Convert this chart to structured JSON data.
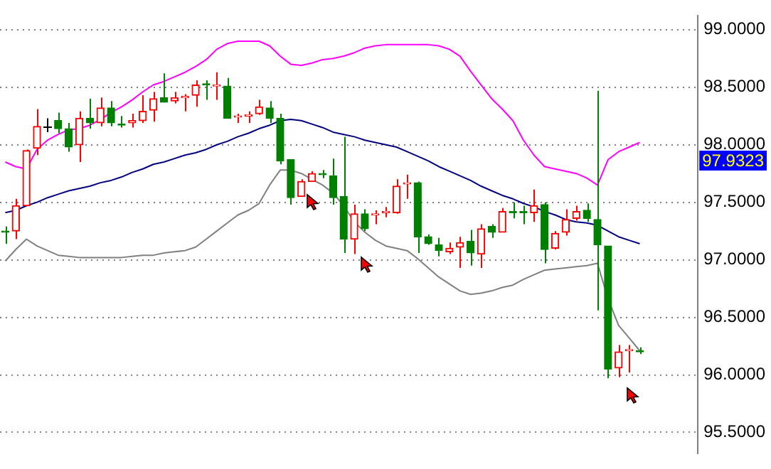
{
  "chart_data": {
    "type": "candlestick",
    "categories": [
      null,
      null,
      null,
      null,
      null,
      null,
      null,
      null,
      null,
      null,
      null,
      null,
      null,
      null,
      null,
      null,
      null,
      null,
      null,
      null,
      null,
      null,
      null,
      null,
      null,
      null,
      null,
      null,
      null,
      null,
      null,
      null,
      null,
      null,
      null,
      null,
      null,
      null,
      null,
      null,
      null,
      null,
      null,
      null,
      null,
      null,
      null,
      null,
      null,
      null,
      null,
      null,
      null,
      null,
      null,
      null,
      null,
      null,
      null,
      null,
      null,
      null,
      null,
      null,
      null,
      null
    ],
    "ohlc": [
      [
        97.25,
        97.29,
        97.14,
        97.24
      ],
      [
        97.25,
        97.53,
        97.18,
        97.47
      ],
      [
        97.47,
        97.96,
        97.47,
        97.95
      ],
      [
        97.97,
        98.31,
        97.91,
        98.16
      ],
      [
        98.16,
        98.23,
        98.11,
        98.16
      ],
      [
        98.21,
        98.28,
        98.1,
        98.14
      ],
      [
        98.14,
        98.19,
        97.94,
        97.98
      ],
      [
        98.0,
        98.29,
        97.85,
        98.23
      ],
      [
        98.23,
        98.4,
        98.14,
        98.19
      ],
      [
        98.19,
        98.41,
        98.16,
        98.32
      ],
      [
        98.32,
        98.38,
        98.16,
        98.19
      ],
      [
        98.18,
        98.25,
        98.15,
        98.17
      ],
      [
        98.19,
        98.27,
        98.15,
        98.21
      ],
      [
        98.21,
        98.43,
        98.19,
        98.29
      ],
      [
        98.3,
        98.46,
        98.2,
        98.4
      ],
      [
        98.41,
        98.62,
        98.37,
        98.37
      ],
      [
        98.38,
        98.46,
        98.36,
        98.41
      ],
      [
        98.41,
        98.44,
        98.29,
        98.42
      ],
      [
        98.43,
        98.56,
        98.33,
        98.52
      ],
      [
        98.53,
        98.56,
        98.39,
        98.52
      ],
      [
        98.51,
        98.63,
        98.39,
        98.52
      ],
      [
        98.51,
        98.58,
        98.23,
        98.23
      ],
      [
        98.24,
        98.27,
        98.19,
        98.25
      ],
      [
        98.25,
        98.29,
        98.19,
        98.26
      ],
      [
        98.27,
        98.39,
        98.26,
        98.33
      ],
      [
        98.32,
        98.38,
        98.19,
        98.23
      ],
      [
        98.23,
        98.27,
        97.83,
        97.86
      ],
      [
        97.87,
        97.87,
        97.48,
        97.54
      ],
      [
        97.55,
        97.7,
        97.55,
        97.68
      ],
      [
        97.68,
        97.77,
        97.68,
        97.75
      ],
      [
        97.75,
        97.78,
        97.71,
        97.74
      ],
      [
        97.73,
        97.88,
        97.48,
        97.54
      ],
      [
        97.55,
        98.07,
        97.06,
        97.18
      ],
      [
        97.18,
        97.48,
        97.05,
        97.4
      ],
      [
        97.4,
        97.44,
        97.25,
        97.27
      ],
      [
        97.39,
        97.43,
        97.31,
        97.4
      ],
      [
        97.41,
        97.46,
        97.37,
        97.42
      ],
      [
        97.41,
        97.7,
        97.4,
        97.64
      ],
      [
        97.66,
        97.74,
        97.53,
        97.67
      ],
      [
        97.67,
        97.68,
        97.06,
        97.2
      ],
      [
        97.2,
        97.22,
        97.13,
        97.14
      ],
      [
        97.13,
        97.19,
        97.03,
        97.08
      ],
      [
        97.07,
        97.15,
        97.05,
        97.1
      ],
      [
        97.11,
        97.2,
        96.93,
        97.15
      ],
      [
        97.16,
        97.26,
        96.95,
        97.06
      ],
      [
        97.05,
        97.31,
        96.93,
        97.27
      ],
      [
        97.29,
        97.31,
        97.19,
        97.24
      ],
      [
        97.24,
        97.45,
        97.24,
        97.42
      ],
      [
        97.42,
        97.5,
        97.36,
        97.41
      ],
      [
        97.42,
        97.47,
        97.31,
        97.41
      ],
      [
        97.41,
        97.61,
        97.33,
        97.47
      ],
      [
        97.48,
        97.5,
        96.97,
        97.09
      ],
      [
        97.1,
        97.25,
        97.09,
        97.23
      ],
      [
        97.24,
        97.44,
        97.21,
        97.35
      ],
      [
        97.36,
        97.47,
        97.34,
        97.42
      ],
      [
        97.43,
        97.49,
        97.33,
        97.36
      ],
      [
        97.35,
        98.47,
        96.56,
        97.13
      ],
      [
        97.12,
        97.12,
        95.97,
        96.05
      ],
      [
        96.06,
        96.26,
        95.98,
        96.2
      ],
      [
        96.21,
        96.26,
        96.02,
        96.22
      ],
      [
        96.21,
        96.24,
        96.18,
        96.2
      ],
      null,
      null,
      null,
      null,
      null
    ],
    "colors": [
      "#008000",
      "#ff0000",
      "#ff0000",
      "#ff0000",
      "#000000",
      "#008000",
      "#008000",
      "#ff0000",
      "#008000",
      "#ff0000",
      "#008000",
      "#008000",
      "#ff0000",
      "#ff0000",
      "#ff0000",
      "#008000",
      "#ff0000",
      "#ff0000",
      "#ff0000",
      "#008000",
      "#ff0000",
      "#008000",
      "#ff0000",
      "#ff0000",
      "#ff0000",
      "#008000",
      "#008000",
      "#008000",
      "#ff0000",
      "#ff0000",
      "#008000",
      "#008000",
      "#008000",
      "#ff0000",
      "#008000",
      "#ff0000",
      "#ff0000",
      "#ff0000",
      "#ff0000",
      "#008000",
      "#008000",
      "#008000",
      "#ff0000",
      "#ff0000",
      "#008000",
      "#ff0000",
      "#008000",
      "#ff0000",
      "#008000",
      "#008000",
      "#ff0000",
      "#008000",
      "#ff0000",
      "#ff0000",
      "#ff0000",
      "#008000",
      "#008000",
      "#008000",
      "#ff0000",
      "#ff0000",
      "#008000",
      null,
      null,
      null,
      null,
      null
    ],
    "series": [
      {
        "type": "line",
        "color": "#ff00ff",
        "values": [
          97.85,
          97.81,
          97.79,
          97.96,
          98.04,
          98.09,
          98.13,
          98.14,
          98.17,
          98.22,
          98.28,
          98.33,
          98.39,
          98.46,
          98.52,
          98.55,
          98.59,
          98.63,
          98.68,
          98.74,
          98.83,
          98.88,
          98.9,
          98.9,
          98.9,
          98.86,
          98.77,
          98.7,
          98.69,
          98.71,
          98.74,
          98.75,
          98.77,
          98.8,
          98.84,
          98.86,
          98.87,
          98.87,
          98.87,
          98.87,
          98.87,
          98.86,
          98.83,
          98.77,
          98.64,
          98.52,
          98.4,
          98.31,
          98.21,
          98.04,
          97.91,
          97.81,
          97.79,
          97.77,
          97.75,
          97.71,
          97.65,
          97.87,
          97.94,
          97.98,
          98.02,
          null,
          null,
          null,
          null,
          null
        ]
      },
      {
        "type": "line",
        "color": "#000080",
        "values": [
          97.41,
          97.43,
          97.47,
          97.5,
          97.54,
          97.57,
          97.6,
          97.62,
          97.64,
          97.67,
          97.69,
          97.72,
          97.76,
          97.79,
          97.83,
          97.85,
          97.88,
          97.91,
          97.93,
          97.96,
          98.0,
          98.03,
          98.07,
          98.1,
          98.14,
          98.17,
          98.21,
          98.22,
          98.21,
          98.18,
          98.15,
          98.11,
          98.09,
          98.07,
          98.04,
          98.02,
          98.0,
          97.98,
          97.94,
          97.9,
          97.86,
          97.81,
          97.77,
          97.73,
          97.69,
          97.64,
          97.6,
          97.56,
          97.53,
          97.49,
          97.46,
          97.42,
          97.39,
          97.35,
          97.33,
          97.32,
          97.3,
          97.25,
          97.2,
          97.17,
          97.14,
          null,
          null,
          null,
          null,
          null
        ]
      },
      {
        "type": "line",
        "color": "#808080",
        "values": [
          96.99,
          97.09,
          97.18,
          97.12,
          97.08,
          97.04,
          97.03,
          97.02,
          97.02,
          97.02,
          97.02,
          97.02,
          97.03,
          97.04,
          97.04,
          97.06,
          97.07,
          97.08,
          97.11,
          97.18,
          97.25,
          97.32,
          97.39,
          97.43,
          97.49,
          97.65,
          97.78,
          97.78,
          97.75,
          97.7,
          97.65,
          97.58,
          97.47,
          97.33,
          97.24,
          97.17,
          97.12,
          97.1,
          97.08,
          97.01,
          96.93,
          96.85,
          96.79,
          96.73,
          96.7,
          96.71,
          96.73,
          96.76,
          96.78,
          96.83,
          96.87,
          96.91,
          96.92,
          96.93,
          96.94,
          96.95,
          96.97,
          96.66,
          96.43,
          96.32,
          96.21,
          null,
          null,
          null,
          null,
          null
        ]
      }
    ],
    "ylim": [
      95.32,
      99.12
    ],
    "yticks": [
      {
        "value": 95.5,
        "label": "95.5000"
      },
      {
        "value": 96,
        "label": "96.0000"
      },
      {
        "value": 96.5,
        "label": "96.5000"
      },
      {
        "value": 97,
        "label": "97.0000"
      },
      {
        "value": 97.5,
        "label": "97.5000"
      },
      {
        "value": 98,
        "label": "98.0000"
      },
      {
        "value": 98.5,
        "label": "98.5000"
      },
      {
        "value": 99,
        "label": "99.0000"
      }
    ],
    "grid": "y",
    "tick_labels": "y",
    "annotations": [
      "97.9323"
    ]
  }
}
